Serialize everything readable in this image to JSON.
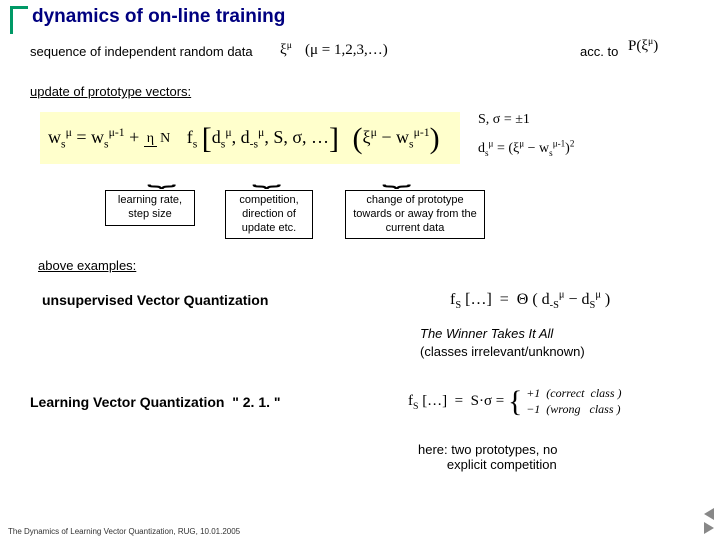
{
  "title": "dynamics of on-line training",
  "line_sequence": "sequence of independent random data",
  "acc_to": "acc. to",
  "mu_list": "(μ = 1,2,3,…)",
  "xi_mu": "ξ<sup>μ</sup>",
  "p_xi": "P(ξ<sup>μ</sup>)",
  "line_update": "update of prototype vectors:",
  "main_equation": "w<sub>s</sub><sup>μ</sup> = w<sub>s</sub><sup>μ-1</sup> + <span class='frac'><span class='n'>η</span><span class='d'>N</span></span> &nbsp; f<sub>s</sub> <span class='bigbr'>[</span>d<sub>s</sub><sup>μ</sup>, d<sub>-s</sub><sup>μ</sup>, S, σ, …<span class='bigbr'>]</span> &nbsp; <span class='bigbr'>(</span>ξ<sup>μ</sup> − w<sub>s</sub><sup>μ-1</sup><span class='bigbr'>)</span>",
  "side_eq1": "S, σ = ±1",
  "side_eq2": "d<sub>s</sub><sup>μ</sup> = (ξ<sup>μ</sup> − w<sub>s</sub><sup>μ-1</sup>)<sup>2</sup>",
  "box1": "learning rate, step size",
  "box2": "competition, direction of update etc.",
  "box3": "change of prototype towards or away from the current data",
  "above_examples": "above examples:",
  "uvq": "unsupervised Vector Quantization",
  "uvq_formula": "f<sub>S</sub> […] &nbsp;=&nbsp; Θ ( d<sub>-S</sub><sup>μ</sup> − d<sub>S</sub><sup>μ</sup> )",
  "winner": "The Winner Takes It All",
  "winner_sub": "(classes irrelevant/unknown)",
  "lvq": "Learning Vector Quantization &nbsp;\" 2. 1. \"",
  "lvq_formula_lhs": "f<sub>S</sub> […] &nbsp;=&nbsp; S·σ =",
  "lvq_case1": "+1 &nbsp;(correct&nbsp; class )",
  "lvq_case2": "−1 &nbsp;(wrong &nbsp; class )",
  "here": "here: two prototypes, no<br>&nbsp;&nbsp;&nbsp;&nbsp;&nbsp;&nbsp;&nbsp;&nbsp;explicit competition",
  "footer": "The Dynamics of Learning Vector Quantization, RUG, 10.01.2005",
  "colors": {
    "title": "#000080",
    "bracket": "#009966",
    "eq_bg": "#ffffcc"
  }
}
